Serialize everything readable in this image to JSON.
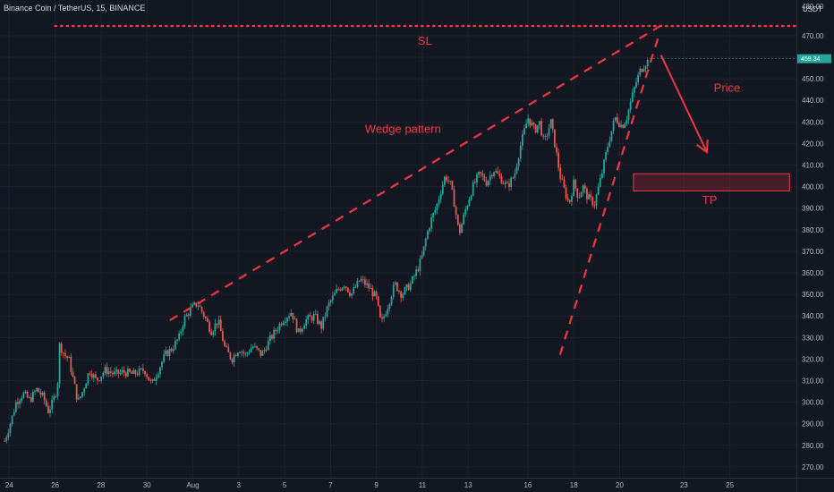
{
  "header": {
    "symbol_title": "Binance Coin / TetherUS, 15, BINANCE",
    "currency": "USDT"
  },
  "colors": {
    "background": "#131722",
    "up": "#26a69a",
    "down": "#ef5350",
    "annotation": "#f23645",
    "grid": "#1e2230",
    "axis_text": "#b2b5be"
  },
  "chart_data": {
    "type": "candlestick",
    "title": "Binance Coin / TetherUS, 15, BINANCE",
    "ylabel": "USDT",
    "ylim": [
      265,
      482
    ],
    "y_ticks": [
      270,
      280,
      290,
      300,
      310,
      320,
      330,
      340,
      350,
      360,
      370,
      380,
      390,
      400,
      410,
      420,
      430,
      440,
      450,
      460,
      470
    ],
    "top_tick_label": "480.00",
    "x_ticks": [
      "24",
      "26",
      "28",
      "30",
      "Aug",
      "3",
      "5",
      "7",
      "9",
      "11",
      "13",
      "16",
      "18",
      "20",
      "23",
      "25"
    ],
    "x_ticks_day": [
      24,
      26,
      28,
      30,
      32,
      34,
      36,
      38,
      40,
      42,
      44,
      46.6,
      48.6,
      50.6,
      53.4,
      55.4
    ],
    "x_range_day": [
      23.6,
      58.3
    ],
    "last_price_tag": "459.34",
    "price_path": [
      [
        23.8,
        282
      ],
      [
        24.1,
        292
      ],
      [
        24.3,
        300
      ],
      [
        24.6,
        304
      ],
      [
        24.9,
        301
      ],
      [
        25.2,
        306
      ],
      [
        25.5,
        302
      ],
      [
        25.7,
        296
      ],
      [
        25.9,
        300
      ],
      [
        26.1,
        307
      ],
      [
        26.2,
        327
      ],
      [
        26.4,
        322
      ],
      [
        26.6,
        320
      ],
      [
        26.8,
        310
      ],
      [
        27.0,
        300
      ],
      [
        27.2,
        305
      ],
      [
        27.5,
        315
      ],
      [
        27.8,
        310
      ],
      [
        28.2,
        315
      ],
      [
        28.6,
        313
      ],
      [
        29.0,
        314
      ],
      [
        29.4,
        313
      ],
      [
        29.9,
        315
      ],
      [
        30.2,
        308
      ],
      [
        30.5,
        315
      ],
      [
        30.8,
        322
      ],
      [
        31.1,
        325
      ],
      [
        31.4,
        330
      ],
      [
        31.6,
        338
      ],
      [
        31.9,
        343
      ],
      [
        32.2,
        346
      ],
      [
        32.5,
        340
      ],
      [
        32.8,
        333
      ],
      [
        33.1,
        338
      ],
      [
        33.4,
        325
      ],
      [
        33.7,
        320
      ],
      [
        34.0,
        325
      ],
      [
        34.3,
        322
      ],
      [
        34.6,
        326
      ],
      [
        35.0,
        322
      ],
      [
        35.3,
        328
      ],
      [
        35.6,
        333
      ],
      [
        35.9,
        338
      ],
      [
        36.3,
        342
      ],
      [
        36.6,
        332
      ],
      [
        36.9,
        338
      ],
      [
        37.3,
        340
      ],
      [
        37.6,
        335
      ],
      [
        37.9,
        345
      ],
      [
        38.3,
        352
      ],
      [
        38.6,
        355
      ],
      [
        38.9,
        350
      ],
      [
        39.3,
        357
      ],
      [
        39.7,
        353
      ],
      [
        40.0,
        348
      ],
      [
        40.2,
        336
      ],
      [
        40.5,
        345
      ],
      [
        40.8,
        355
      ],
      [
        41.1,
        350
      ],
      [
        41.5,
        355
      ],
      [
        41.8,
        362
      ],
      [
        42.0,
        368
      ],
      [
        42.2,
        378
      ],
      [
        42.4,
        385
      ],
      [
        42.6,
        390
      ],
      [
        42.8,
        398
      ],
      [
        43.0,
        405
      ],
      [
        43.2,
        402
      ],
      [
        43.4,
        392
      ],
      [
        43.6,
        378
      ],
      [
        43.9,
        390
      ],
      [
        44.2,
        400
      ],
      [
        44.5,
        406
      ],
      [
        44.8,
        402
      ],
      [
        45.1,
        408
      ],
      [
        45.4,
        404
      ],
      [
        45.7,
        400
      ],
      [
        46.0,
        405
      ],
      [
        46.3,
        420
      ],
      [
        46.6,
        432
      ],
      [
        46.9,
        426
      ],
      [
        47.1,
        430
      ],
      [
        47.3,
        420
      ],
      [
        47.6,
        430
      ],
      [
        47.8,
        418
      ],
      [
        48.0,
        405
      ],
      [
        48.2,
        398
      ],
      [
        48.4,
        392
      ],
      [
        48.6,
        402
      ],
      [
        48.8,
        395
      ],
      [
        49.0,
        400
      ],
      [
        49.2,
        395
      ],
      [
        49.5,
        392
      ],
      [
        49.8,
        405
      ],
      [
        50.1,
        420
      ],
      [
        50.4,
        432
      ],
      [
        50.7,
        428
      ],
      [
        50.9,
        432
      ],
      [
        51.1,
        440
      ],
      [
        51.3,
        448
      ],
      [
        51.5,
        454
      ],
      [
        51.7,
        457
      ],
      [
        51.9,
        459
      ]
    ],
    "annotations": {
      "sl_label": "SL",
      "sl_level": 474.5,
      "sl_line_day": [
        26.0,
        58.3
      ],
      "wedge_label": "Wedge pattern",
      "wedge_label_pos": [
        39.5,
        425
      ],
      "upper_line": [
        [
          31.0,
          338
        ],
        [
          52.6,
          476
        ]
      ],
      "lower_line": [
        [
          48.0,
          322
        ],
        [
          52.3,
          470
        ]
      ],
      "price_label": "Price",
      "price_label_pos": [
        54.7,
        444
      ],
      "price_arrow": [
        [
          52.4,
          461
        ],
        [
          54.4,
          416
        ]
      ],
      "tp_label": "TP",
      "tp_label_pos": [
        54.2,
        392
      ],
      "tp_zone": {
        "day_range": [
          51.2,
          58.0
        ],
        "price_range": [
          398,
          406
        ]
      }
    }
  }
}
